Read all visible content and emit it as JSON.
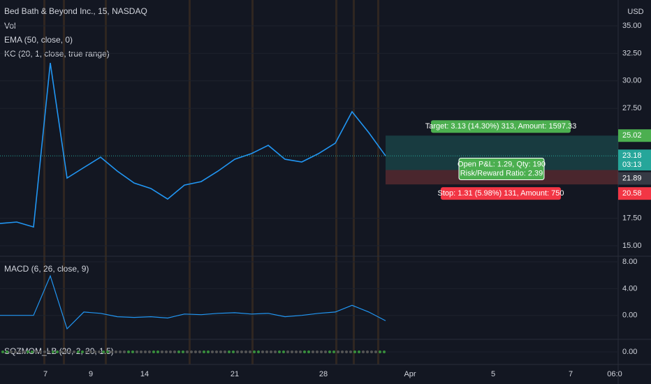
{
  "legend": {
    "title": "Bed Bath & Beyond Inc., 15, NASDAQ",
    "lines": [
      "Vol",
      "EMA (50, close, 0)",
      "KC (20, 1, close, true range)"
    ]
  },
  "price_pane": {
    "type": "line",
    "currency": "USD",
    "ylim": [
      14.05,
      37.35
    ],
    "yticks": [
      {
        "value": 35,
        "label": "35.00"
      },
      {
        "value": 32.5,
        "label": "32.50"
      },
      {
        "value": 30,
        "label": "30.00"
      },
      {
        "value": 27.5,
        "label": "27.50"
      },
      {
        "value": 17.5,
        "label": "17.50"
      },
      {
        "value": 15,
        "label": "15.00"
      }
    ],
    "color": "#2196f3",
    "values": [
      17.03,
      17.16,
      16.71,
      31.63,
      21.16,
      22.11,
      23.06,
      21.79,
      20.71,
      20.21,
      19.25,
      20.52,
      20.84,
      21.79,
      22.87,
      23.38,
      24.14,
      22.87,
      22.62,
      23.38,
      24.33,
      27.19,
      25.29,
      23.18
    ]
  },
  "position": {
    "target": 25.02,
    "last": 23.18,
    "countdown": "03:13",
    "entry": 21.89,
    "stop": 20.58,
    "target_text": "Target: 3.13 (14.30%) 313, Amount: 1597.33",
    "pnl_text": "Open P&L: 1.29, Qty: 190",
    "rr_text": "Risk/Reward Ratio: 2.39",
    "stop_text": "Stop: 1.31 (5.98%) 131, Amount: 750"
  },
  "macd_pane": {
    "title": "MACD (6, 26, close, 9)",
    "ylim": [
      -3.58,
      8.84
    ],
    "yticks": [
      {
        "value": 8,
        "label": "8.00"
      },
      {
        "value": 4,
        "label": "4.00"
      },
      {
        "value": 0,
        "label": "0.00"
      }
    ],
    "color": "#2196f3",
    "values": [
      0,
      0,
      0,
      5.9,
      -2,
      0.5,
      0.3,
      -0.2,
      -0.3,
      -0.2,
      -0.4,
      0.2,
      0.1,
      0.3,
      0.4,
      0.2,
      0.3,
      -0.2,
      0,
      0.3,
      0.5,
      1.5,
      0.5,
      -0.8
    ]
  },
  "sqz_pane": {
    "title": "SQZMOM_LB (20, 2, 20, 1.5)",
    "ylim": [
      -1,
      1
    ],
    "yticks": [
      {
        "value": 0,
        "label": "0.00"
      }
    ]
  },
  "time_axis": {
    "labels": [
      "7",
      "9",
      "14",
      "21",
      "28",
      "Apr",
      "5",
      "7",
      "06:0"
    ]
  }
}
